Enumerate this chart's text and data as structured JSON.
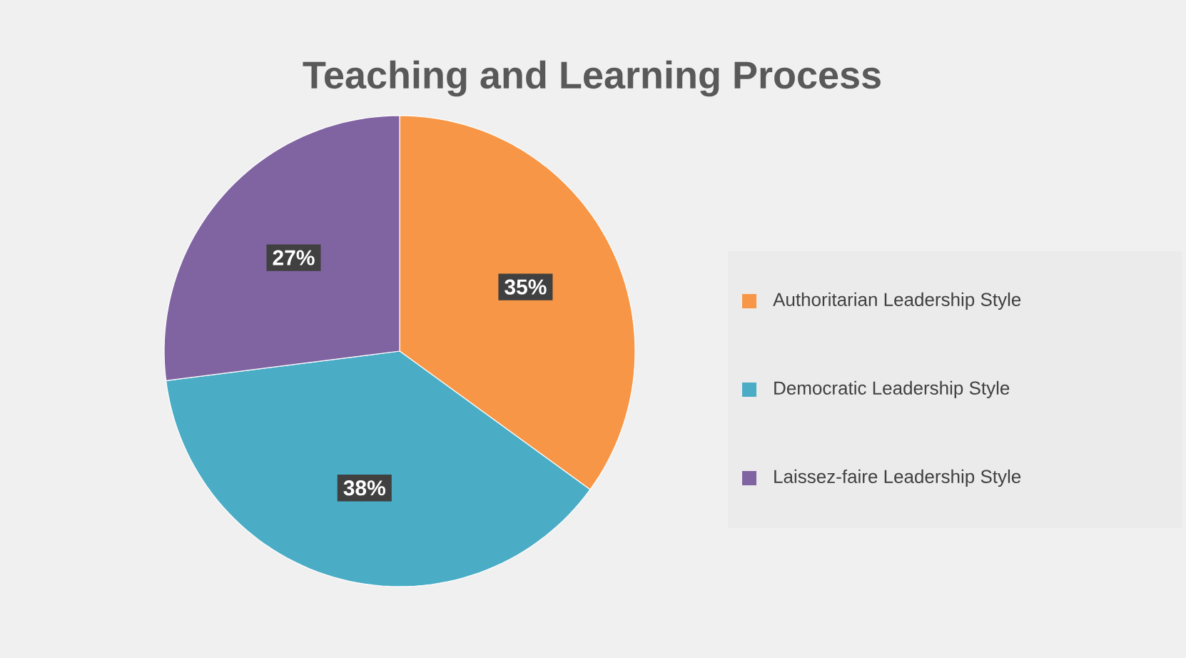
{
  "chart_data": {
    "type": "pie",
    "title": "Teaching and Learning Process",
    "categories": [
      "Authoritarian Leadership Style",
      "Democratic Leadership Style",
      "Laissez-faire Leadership Style"
    ],
    "values": [
      35,
      38,
      27
    ],
    "value_labels": [
      "35%",
      "38%",
      "27%"
    ],
    "colors": [
      "#f79646",
      "#4bacc6",
      "#8064a2"
    ],
    "legend": "right"
  }
}
